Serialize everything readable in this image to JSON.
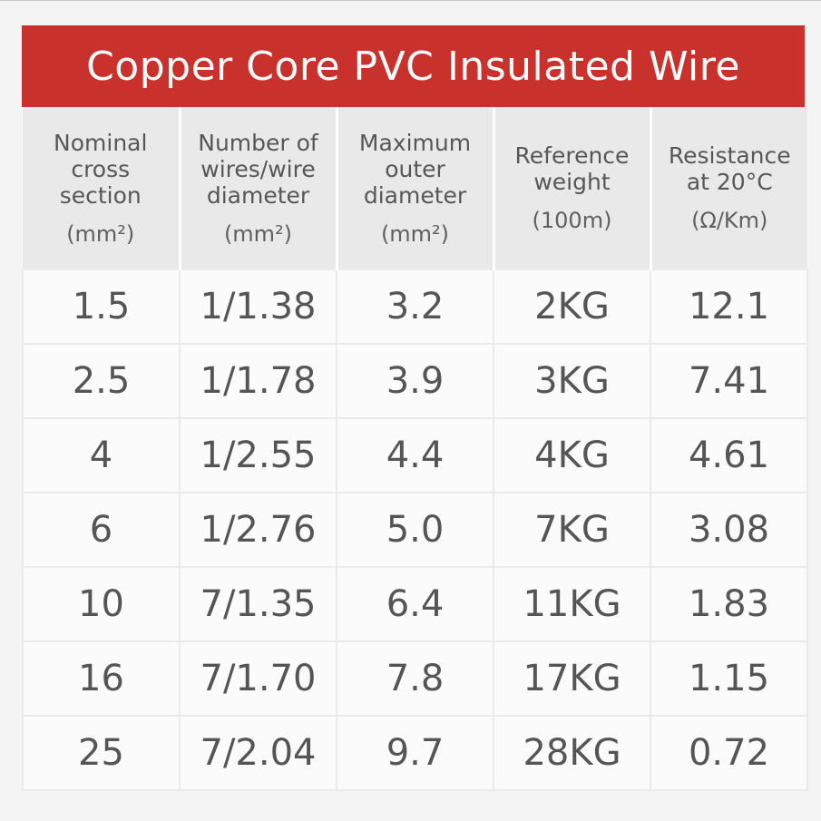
{
  "title": "Copper Core PVC Insulated Wire",
  "colors": {
    "title_bg": "#c8312c",
    "header_bg": "#e9e9e9",
    "text": "#555555"
  },
  "columns": [
    {
      "label": "Nominal\ncross\nsection",
      "unit": "(mm²)"
    },
    {
      "label": "Number of\nwires/wire\ndiameter",
      "unit": "(mm²)"
    },
    {
      "label": "Maximum\nouter\ndiameter",
      "unit": "(mm²)"
    },
    {
      "label": "Reference\nweight",
      "unit": "(100m)"
    },
    {
      "label": "Resistance\nat 20°C",
      "unit": "(Ω/Km)"
    }
  ],
  "rows": [
    [
      "1.5",
      "1/1.38",
      "3.2",
      "2KG",
      "12.1"
    ],
    [
      "2.5",
      "1/1.78",
      "3.9",
      "3KG",
      "7.41"
    ],
    [
      "4",
      "1/2.55",
      "4.4",
      "4KG",
      "4.61"
    ],
    [
      "6",
      "1/2.76",
      "5.0",
      "7KG",
      "3.08"
    ],
    [
      "10",
      "7/1.35",
      "6.4",
      "11KG",
      "1.83"
    ],
    [
      "16",
      "7/1.70",
      "7.8",
      "17KG",
      "1.15"
    ],
    [
      "25",
      "7/2.04",
      "9.7",
      "28KG",
      "0.72"
    ]
  ]
}
